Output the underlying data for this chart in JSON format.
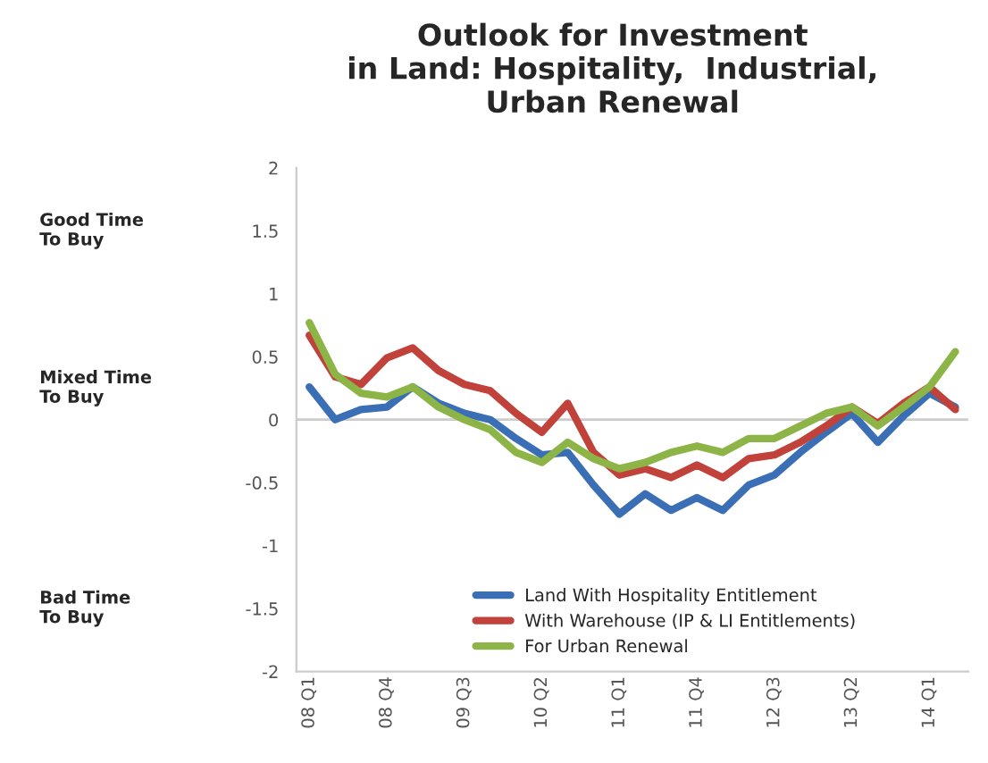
{
  "chart_data": {
    "type": "line",
    "title": "Outlook for Investment\nin Land: Hospitality,  Industrial,\nUrban Renewal",
    "categories": [
      "08 Q1",
      null,
      null,
      "08 Q4",
      null,
      null,
      "09 Q3",
      null,
      null,
      "10 Q2",
      null,
      null,
      "11 Q1",
      null,
      null,
      "11 Q4",
      null,
      null,
      "12 Q3",
      null,
      null,
      "13 Q2",
      null,
      null,
      "14 Q1",
      null
    ],
    "series": [
      {
        "name": "Land With Hospitality Entitlement",
        "color": "#3a6fb5",
        "values": [
          0.26,
          0,
          0.08,
          0.1,
          0.26,
          0.13,
          0.05,
          0,
          -0.15,
          -0.28,
          -0.26,
          -0.52,
          -0.75,
          -0.59,
          -0.72,
          -0.62,
          -0.72,
          -0.52,
          -0.44,
          -0.26,
          -0.1,
          0.05,
          -0.18,
          0.03,
          0.21,
          0.1
        ]
      },
      {
        "name": "With Warehouse (IP & LI Entitlements)",
        "color": "#c0423a",
        "values": [
          0.67,
          0.34,
          0.28,
          0.49,
          0.57,
          0.39,
          0.28,
          0.23,
          0.05,
          -0.1,
          0.13,
          -0.26,
          -0.44,
          -0.39,
          -0.46,
          -0.36,
          -0.46,
          -0.31,
          -0.28,
          -0.18,
          -0.05,
          0.1,
          -0.03,
          0.13,
          0.26,
          0.08
        ]
      },
      {
        "name": "For Urban Renewal",
        "color": "#8db446",
        "values": [
          0.77,
          0.36,
          0.21,
          0.18,
          0.26,
          0.1,
          0,
          -0.08,
          -0.26,
          -0.34,
          -0.18,
          -0.31,
          -0.39,
          -0.34,
          -0.26,
          -0.21,
          -0.26,
          -0.15,
          -0.15,
          -0.05,
          0.05,
          0.1,
          -0.05,
          0.1,
          0.26,
          0.54
        ]
      }
    ],
    "ylim": [
      -2,
      2
    ],
    "yticks": [
      -2,
      -1.5,
      -1,
      -0.5,
      0,
      0.5,
      1,
      1.5,
      2
    ],
    "annotations": [
      "Good Time\nTo Buy",
      "Mixed Time\nTo Buy",
      "Bad Time\nTo Buy"
    ],
    "ref_lines": [
      {
        "axis": "y",
        "value": 0,
        "color": "#cccccc"
      }
    ],
    "legend": "bottom"
  }
}
